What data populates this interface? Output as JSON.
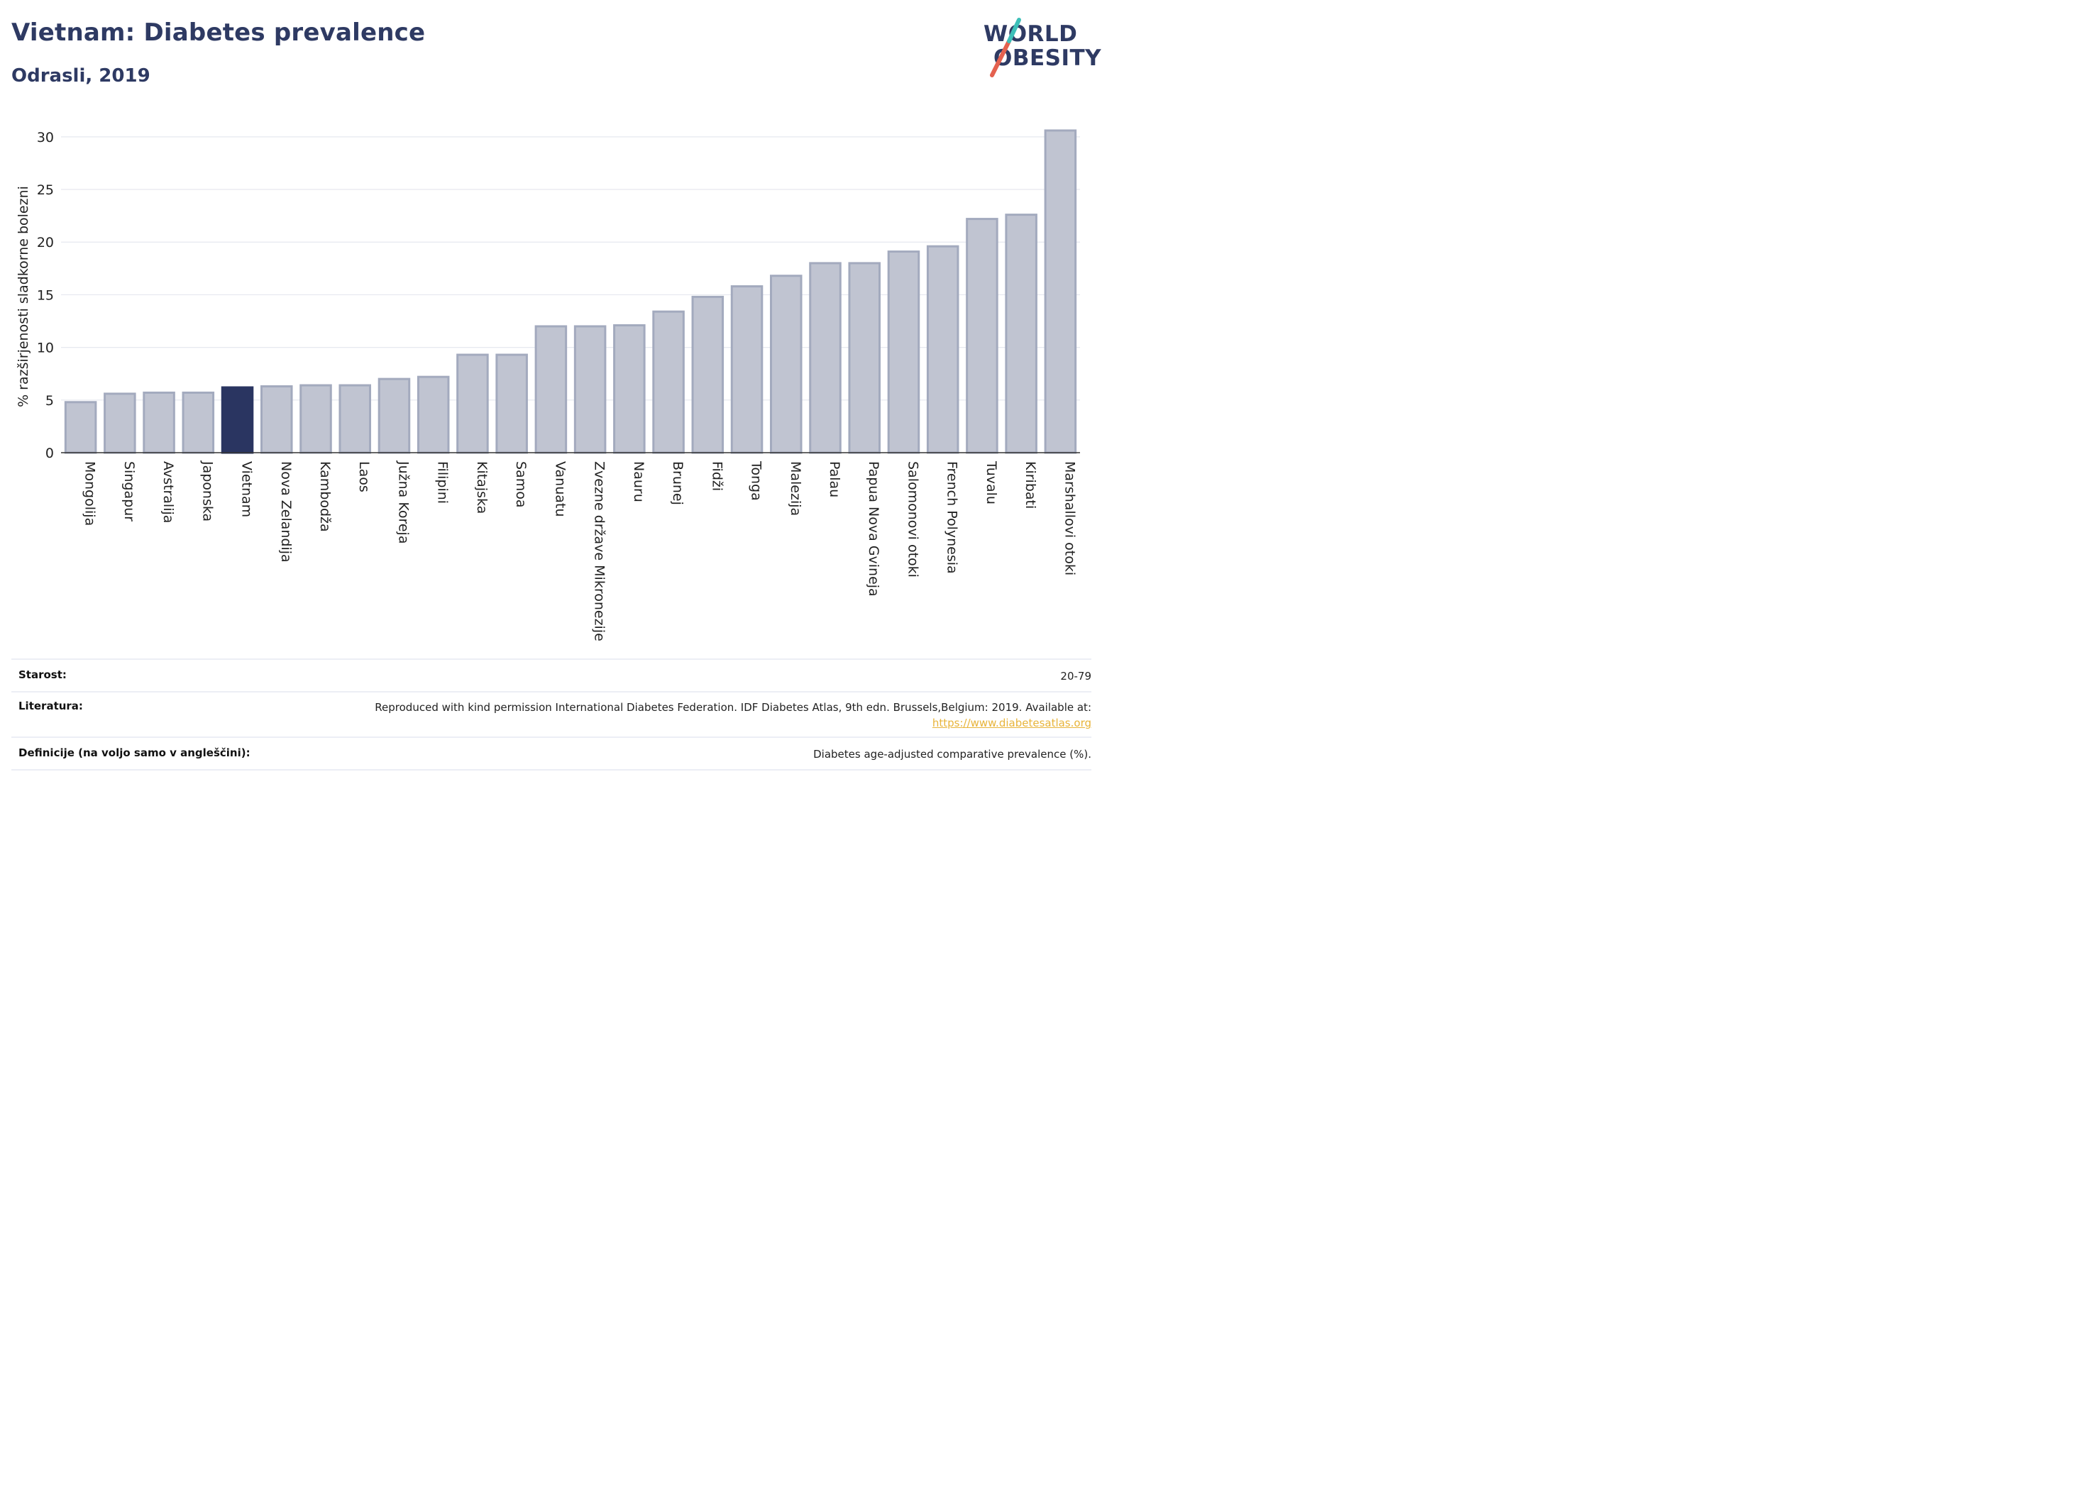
{
  "header": {
    "title": "Vietnam: Diabetes prevalence",
    "subtitle": "Odrasli, 2019"
  },
  "logo": {
    "line1": "WORLD",
    "line2": "OBESITY"
  },
  "colors": {
    "highlight": "#2a3561",
    "bar_fill": "#c0c4d1",
    "bar_stroke": "#a3aabe",
    "title": "#2e3a63",
    "link": "#e8b43a",
    "logo_slash_red": "#e4614f",
    "logo_slash_teal": "#3dbfb8"
  },
  "chart_data": {
    "type": "bar",
    "ylabel": "% razširjenosti sladkorne bolezni",
    "ylim": [
      0,
      31
    ],
    "yticks": [
      0,
      5,
      10,
      15,
      20,
      25,
      30
    ],
    "grid": true,
    "highlight": "Vietnam",
    "categories": [
      "Mongolija",
      "Singapur",
      "Avstralija",
      "Japonska",
      "Vietnam",
      "Nova Zelandija",
      "Kambodža",
      "Laos",
      "Južna Koreja",
      "Filipini",
      "Kitajska",
      "Samoa",
      "Vanuatu",
      "Zvezne države Mikronezije",
      "Nauru",
      "Brunej",
      "Fidži",
      "Tonga",
      "Malezija",
      "Palau",
      "Papua Nova Gvineja",
      "Salomonovi otoki",
      "French Polynesia",
      "Tuvalu",
      "Kiribati",
      "Marshallovi otoki"
    ],
    "values": [
      4.8,
      5.6,
      5.7,
      5.7,
      6.2,
      6.3,
      6.4,
      6.4,
      7.0,
      7.2,
      9.3,
      9.3,
      12.0,
      12.0,
      12.1,
      13.4,
      14.8,
      15.8,
      16.8,
      18.0,
      18.0,
      19.1,
      19.6,
      22.2,
      22.6,
      30.6
    ]
  },
  "table": {
    "rows": [
      {
        "key": "Starost:",
        "value": "20-79"
      },
      {
        "key": "Literatura:",
        "value": "Reproduced with kind permission International Diabetes Federation. IDF Diabetes Atlas, 9th edn. Brussels,Belgium: 2019. Available at:",
        "link": "https://www.diabetesatlas.org"
      },
      {
        "key": "Definicije (na voljo samo v angleščini):",
        "value": "Diabetes age-adjusted comparative prevalence (%)."
      }
    ]
  }
}
